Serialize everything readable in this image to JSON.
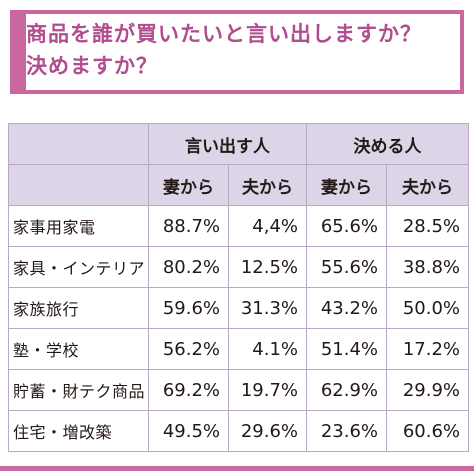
{
  "title": "商品を誰が買いたいと言い出しますか？\n決めますか？",
  "table": {
    "group_headers": [
      "言い出す人",
      "決める人"
    ],
    "sub_headers": [
      "妻から",
      "夫から",
      "妻から",
      "夫から"
    ],
    "rows": [
      {
        "label": "家事用家電",
        "values": [
          "88.7%",
          "4,4%",
          "65.6%",
          "28.5%"
        ]
      },
      {
        "label": "家具・インテリア",
        "values": [
          "80.2%",
          "12.5%",
          "55.6%",
          "38.8%"
        ]
      },
      {
        "label": "家族旅行",
        "values": [
          "59.6%",
          "31.3%",
          "43.2%",
          "50.0%"
        ]
      },
      {
        "label": "塾・学校",
        "values": [
          "56.2%",
          "4.1%",
          "51.4%",
          "17.2%"
        ]
      },
      {
        "label": "貯蓄・財テク商品",
        "values": [
          "69.2%",
          "19.7%",
          "62.9%",
          "29.9%"
        ]
      },
      {
        "label": "住宅・増改築",
        "values": [
          "49.5%",
          "29.6%",
          "23.6%",
          "60.6%"
        ]
      }
    ]
  },
  "colors": {
    "accent": "#c9679f",
    "header_bg": "#dcd4e7",
    "border": "#b9a9c6"
  }
}
